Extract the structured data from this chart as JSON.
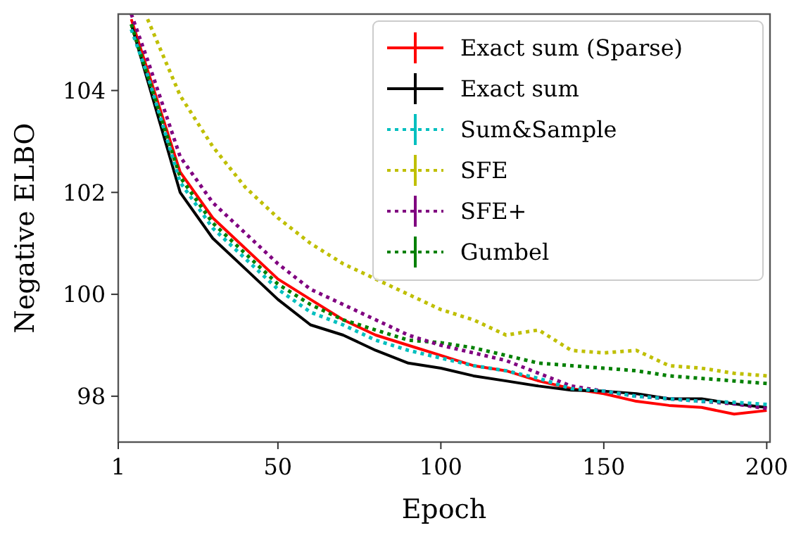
{
  "chart_data": {
    "type": "line",
    "xlabel": "Epoch",
    "ylabel": "Negative ELBO",
    "x": [
      5,
      10,
      20,
      30,
      40,
      50,
      60,
      70,
      80,
      90,
      100,
      110,
      120,
      130,
      140,
      150,
      160,
      170,
      180,
      190,
      200
    ],
    "xlim": [
      1,
      201
    ],
    "xticks": [
      1,
      50,
      100,
      150,
      200
    ],
    "ylim": [
      97.1,
      105.5
    ],
    "yticks": [
      98,
      100,
      102,
      104
    ],
    "grid": false,
    "legend": "top right",
    "series": [
      {
        "name": "Exact sum (Sparse)",
        "color": "#ff0000",
        "line_style": "solid",
        "values": [
          105.4,
          104.4,
          102.4,
          101.5,
          100.9,
          100.3,
          99.9,
          99.5,
          99.2,
          99.0,
          98.8,
          98.6,
          98.5,
          98.3,
          98.15,
          98.05,
          97.9,
          97.82,
          97.78,
          97.65,
          97.72
        ]
      },
      {
        "name": "Exact sum",
        "color": "#000000",
        "line_style": "solid",
        "values": [
          105.3,
          104.2,
          102.0,
          101.1,
          100.5,
          99.9,
          99.4,
          99.2,
          98.9,
          98.65,
          98.55,
          98.4,
          98.3,
          98.2,
          98.12,
          98.1,
          98.05,
          97.95,
          97.95,
          97.85,
          97.78
        ]
      },
      {
        "name": "Sum&Sample",
        "color": "#00bfbf",
        "line_style": "dotted",
        "values": [
          105.2,
          104.3,
          102.2,
          101.3,
          100.7,
          100.1,
          99.65,
          99.4,
          99.1,
          98.9,
          98.75,
          98.6,
          98.5,
          98.35,
          98.15,
          98.1,
          98.0,
          97.95,
          97.9,
          97.88,
          97.84
        ]
      },
      {
        "name": "SFE",
        "color": "#bfbf00",
        "line_style": "dotted",
        "values": [
          null,
          105.4,
          103.9,
          102.9,
          102.1,
          101.5,
          101.0,
          100.6,
          100.3,
          100.0,
          99.7,
          99.5,
          99.2,
          99.3,
          98.9,
          98.85,
          98.9,
          98.6,
          98.55,
          98.45,
          98.4
        ]
      },
      {
        "name": "SFE+",
        "color": "#800080",
        "line_style": "dotted",
        "values": [
          105.5,
          104.6,
          102.7,
          101.8,
          101.2,
          100.6,
          100.1,
          99.8,
          99.5,
          99.2,
          99.0,
          98.85,
          98.7,
          98.45,
          98.2,
          98.1,
          98.0,
          97.95,
          97.9,
          97.85,
          97.76
        ]
      },
      {
        "name": "Gumbel",
        "color": "#008000",
        "line_style": "dotted",
        "values": [
          105.3,
          104.3,
          102.3,
          101.4,
          100.8,
          100.2,
          99.8,
          99.5,
          99.3,
          99.1,
          99.05,
          98.95,
          98.8,
          98.65,
          98.6,
          98.55,
          98.5,
          98.4,
          98.35,
          98.3,
          98.25
        ]
      }
    ]
  }
}
